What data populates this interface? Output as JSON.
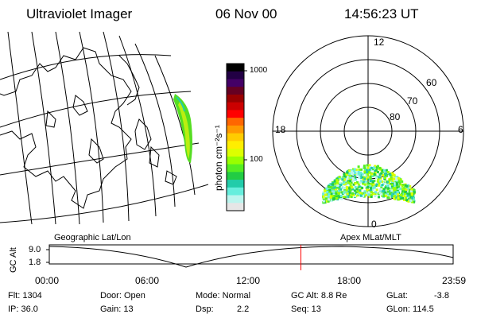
{
  "header": {
    "title": "Ultraviolet Imager",
    "date": "06 Nov 00",
    "time": "14:56:23 UT"
  },
  "colorbar": {
    "label": "photon cm⁻²s⁻¹",
    "ticks": [
      "1000",
      "100"
    ],
    "colors": [
      "#000000",
      "#220044",
      "#440066",
      "#660022",
      "#990000",
      "#cc0000",
      "#ff0000",
      "#ff6600",
      "#ff9900",
      "#ffcc00",
      "#ffee00",
      "#ddff00",
      "#99ff00",
      "#55ee22",
      "#22cc44",
      "#22ccaa",
      "#66eedd",
      "#bbf5ee",
      "#e6e6e6"
    ]
  },
  "polar": {
    "labels": {
      "top": "12",
      "left": "18",
      "right": "6",
      "bottom": "0"
    },
    "rings": [
      "60",
      "70",
      "80"
    ]
  },
  "map": {
    "label": "Geographic Lat/Lon"
  },
  "timeline": {
    "ylabel": "GC Alt",
    "ymax": "9.0",
    "ymin": "1.8",
    "proj_label": "Apex MLat/MLT",
    "ticks": [
      "00:00",
      "06:00",
      "12:00",
      "18:00",
      "23:59"
    ],
    "marker_fraction": 0.623
  },
  "info": {
    "flt": "Flt: 1304",
    "door": "Door: Open",
    "mode": "Mode: Normal",
    "gcalt": "GC Alt: 8.8 Re",
    "glat": "GLat:",
    "glat_val": "-3.8",
    "ip": "IP: 36.0",
    "gain": "Gain: 13",
    "dsp": "Dsp:",
    "dsp_val": "2.2",
    "seq": "Seq: 13",
    "glon": "GLon: 114.5"
  },
  "accent": {
    "marker": "#ff0000",
    "frame": "#000000"
  }
}
